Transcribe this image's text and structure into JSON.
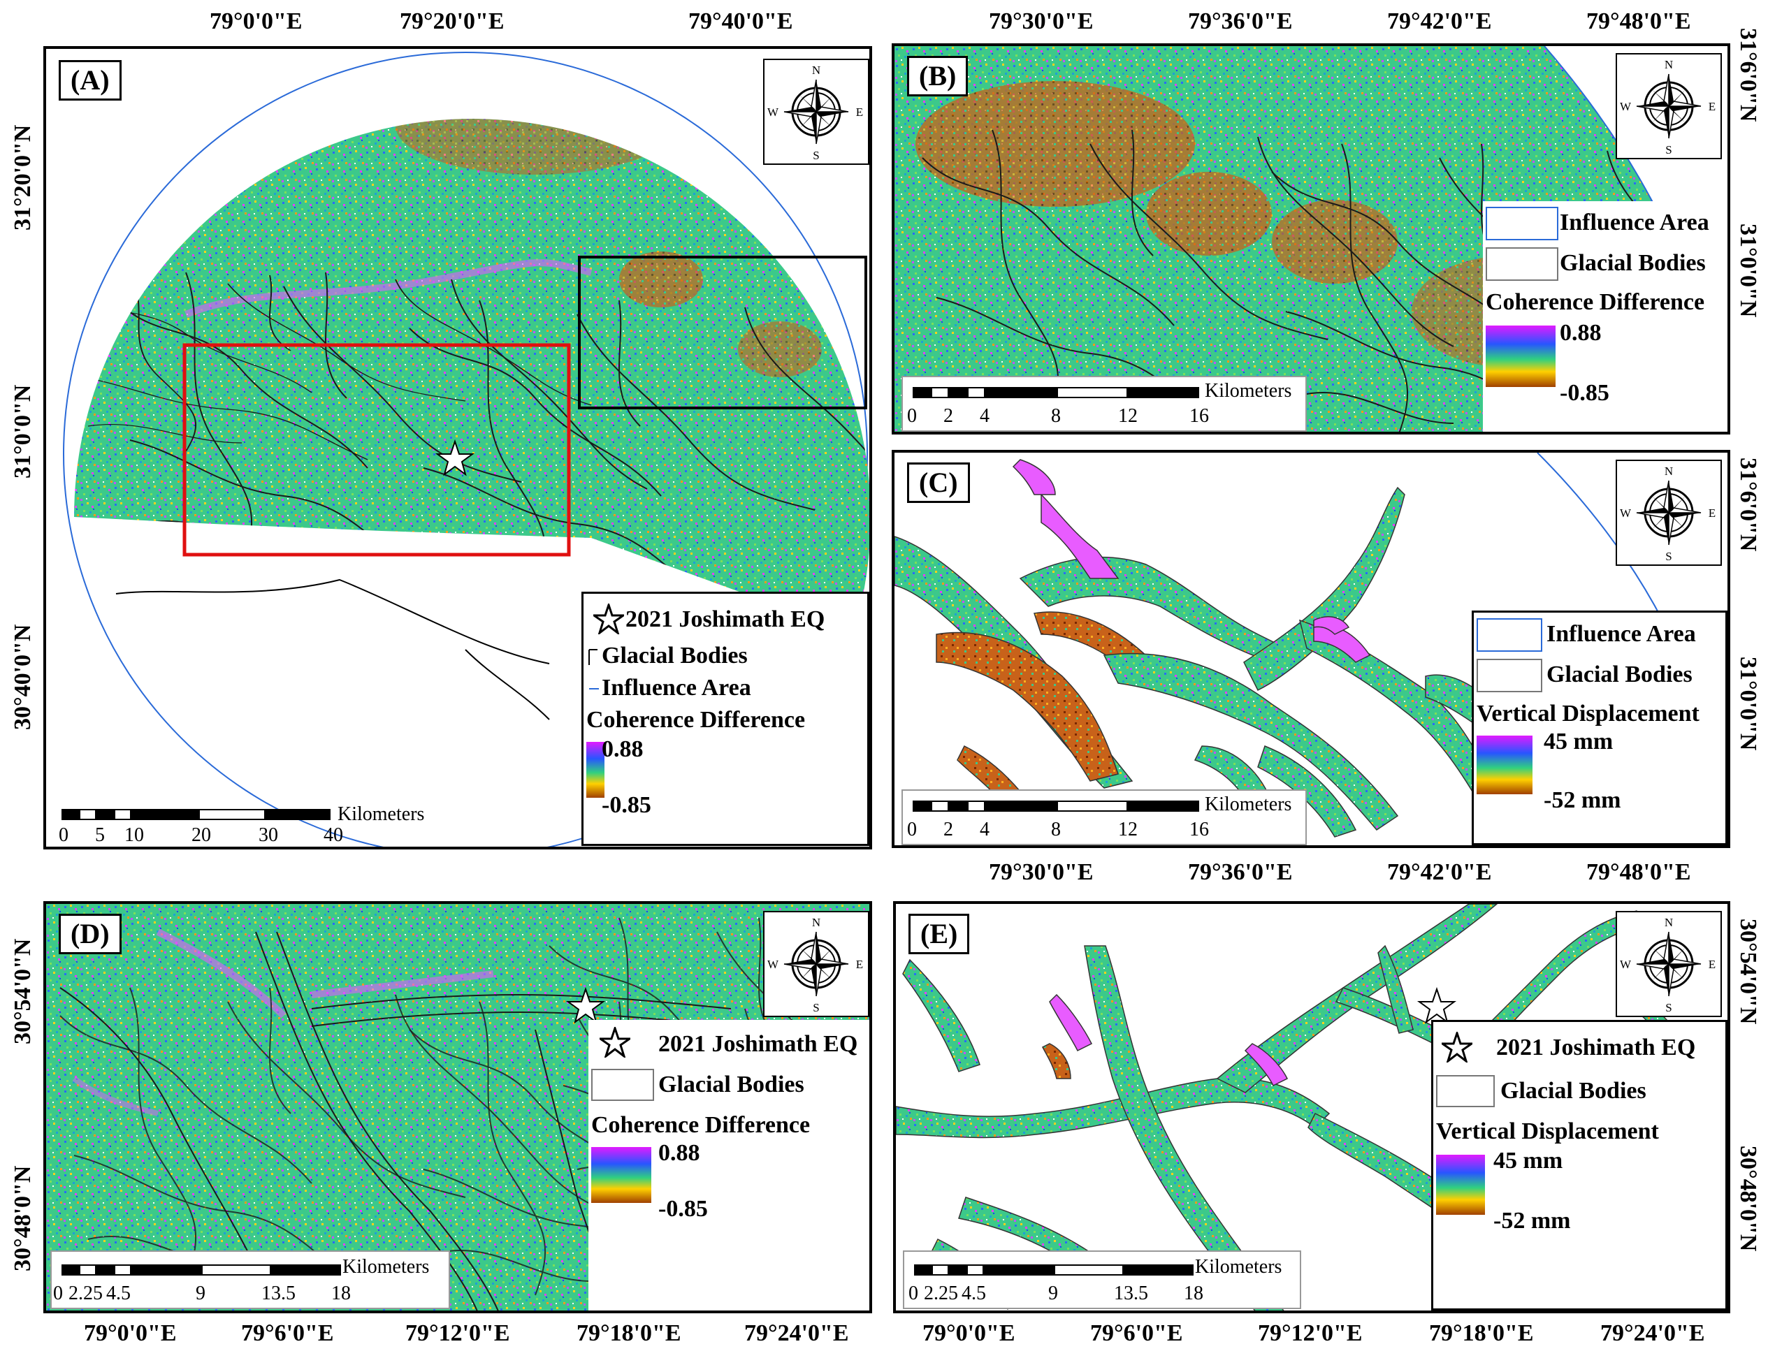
{
  "colors": {
    "coherence_high": "#e21bff",
    "mid_blue": "#2855ff",
    "green": "#30d080",
    "yellow": "#ffd000",
    "low_brown": "#a04000",
    "study_box": "#e01010",
    "inset_box": "#000000",
    "influence_line": "#2a6ad8"
  },
  "top_lon_labels": [
    "79°0'0\"E",
    "79°20'0\"E",
    "79°40'0\"E",
    "79°30'0\"E",
    "79°36'0\"E",
    "79°42'0\"E",
    "79°48'0\"E"
  ],
  "mid_lon_labels": [
    "79°30'0\"E",
    "79°36'0\"E",
    "79°42'0\"E",
    "79°48'0\"E"
  ],
  "bottom_lon_labels": [
    "79°0'0\"E",
    "79°6'0\"E",
    "79°12'0\"E",
    "79°18'0\"E",
    "79°24'0\"E",
    "79°0'0\"E",
    "79°6'0\"E",
    "79°12'0\"E",
    "79°18'0\"E",
    "79°24'0\"E"
  ],
  "left_lat_labels": [
    "31°20'0\"N",
    "31°0'0\"N",
    "30°40'0\"N",
    "30°54'0\"N",
    "30°48'0\"N"
  ],
  "right_lat_labels": [
    "31°6'0\"N",
    "31°0'0\"N",
    "31°6'0\"N",
    "31°0'0\"N",
    "30°54'0\"N",
    "30°48'0\"N"
  ],
  "compass": {
    "n": "N",
    "s": "S",
    "e": "E",
    "w": "W",
    "icon": "compass-rose-icon"
  },
  "panels": {
    "a": {
      "label": "(A)",
      "legend": {
        "eq": "2021 Joshimath EQ",
        "glacial": "Glacial Bodies",
        "influence": "Influence Area",
        "title": "Coherence Difference",
        "max": "0.88",
        "min": "-0.85"
      },
      "scale": {
        "unit": "Kilometers",
        "ticks": [
          "0",
          "5",
          "10",
          "20",
          "30",
          "40"
        ]
      }
    },
    "b": {
      "label": "(B)",
      "legend": {
        "influence": "Influence Area",
        "glacial": "Glacial Bodies",
        "title": "Coherence Difference",
        "max": "0.88",
        "min": "-0.85"
      },
      "scale": {
        "unit": "Kilometers",
        "ticks": [
          "0",
          "2",
          "4",
          "8",
          "12",
          "16"
        ]
      }
    },
    "c": {
      "label": "(C)",
      "legend": {
        "influence": "Influence Area",
        "glacial": "Glacial Bodies",
        "title": "Vertical Displacement",
        "max": "45 mm",
        "min": "-52 mm"
      },
      "scale": {
        "unit": "Kilometers",
        "ticks": [
          "0",
          "2",
          "4",
          "8",
          "12",
          "16"
        ]
      }
    },
    "d": {
      "label": "(D)",
      "legend": {
        "eq": "2021 Joshimath EQ",
        "glacial": "Glacial Bodies",
        "title": "Coherence Difference",
        "max": "0.88",
        "min": "-0.85"
      },
      "scale": {
        "unit": "Kilometers",
        "ticks": [
          "0",
          "2.25",
          "4.5",
          "9",
          "13.5",
          "18"
        ]
      }
    },
    "e": {
      "label": "(E)",
      "legend": {
        "eq": "2021 Joshimath EQ",
        "glacial": "Glacial Bodies",
        "title": "Vertical Displacement",
        "max": "45 mm",
        "min": "-52 mm"
      },
      "scale": {
        "unit": "Kilometers",
        "ticks": [
          "0",
          "2.25",
          "4.5",
          "9",
          "13.5",
          "18"
        ]
      }
    }
  }
}
